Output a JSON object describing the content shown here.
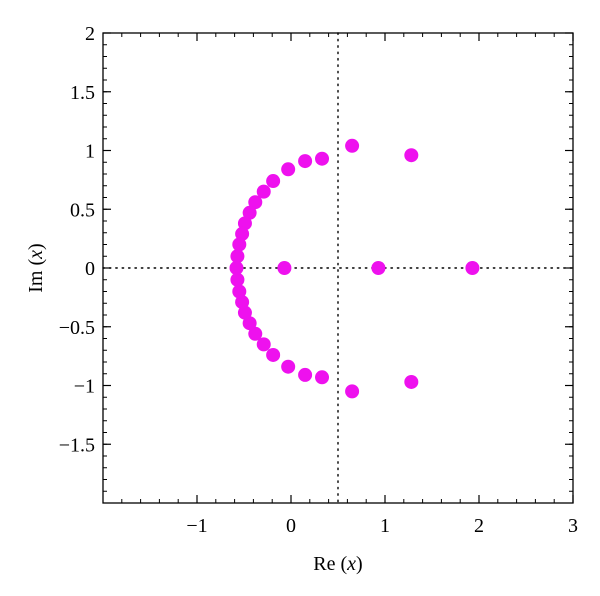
{
  "chart_data": {
    "type": "scatter",
    "title": "",
    "xlabel": {
      "prefix": "Re ",
      "open": "(",
      "var": "x",
      "close": ")"
    },
    "ylabel": {
      "prefix": "Im ",
      "open": "(",
      "var": "x",
      "close": ")"
    },
    "xlim": [
      -2,
      3
    ],
    "ylim": [
      -2,
      2
    ],
    "x_ticks": [
      {
        "value": -1,
        "label": "−1"
      },
      {
        "value": 0,
        "label": "0"
      },
      {
        "value": 1,
        "label": "1"
      },
      {
        "value": 2,
        "label": "2"
      },
      {
        "value": 3,
        "label": "3"
      }
    ],
    "y_ticks": [
      {
        "value": 2,
        "label": "2"
      },
      {
        "value": 1.5,
        "label": "1.5"
      },
      {
        "value": 1,
        "label": "1"
      },
      {
        "value": 0.5,
        "label": "0.5"
      },
      {
        "value": 0,
        "label": "0"
      },
      {
        "value": -0.5,
        "label": "−0.5"
      },
      {
        "value": -1,
        "label": "−1"
      },
      {
        "value": -1.5,
        "label": "−1.5"
      }
    ],
    "x_minor_step": 0.2,
    "y_minor_step": 0.1,
    "reference_lines": {
      "x": 0.5,
      "y": 0,
      "style": "dotted"
    },
    "grid": false,
    "marker_color": "#ee11ee",
    "points": [
      {
        "x": 0.65,
        "y": 1.04
      },
      {
        "x": 0.65,
        "y": -1.05
      },
      {
        "x": 1.28,
        "y": 0.96
      },
      {
        "x": 1.28,
        "y": -0.97
      },
      {
        "x": -0.07,
        "y": 0
      },
      {
        "x": 0.93,
        "y": 0
      },
      {
        "x": 1.93,
        "y": 0
      },
      {
        "x": 0.33,
        "y": 0.93
      },
      {
        "x": 0.33,
        "y": -0.93
      },
      {
        "x": 0.15,
        "y": 0.91
      },
      {
        "x": 0.15,
        "y": -0.91
      },
      {
        "x": -0.03,
        "y": 0.84
      },
      {
        "x": -0.03,
        "y": -0.84
      },
      {
        "x": -0.19,
        "y": 0.74
      },
      {
        "x": -0.19,
        "y": -0.74
      },
      {
        "x": -0.29,
        "y": 0.65
      },
      {
        "x": -0.29,
        "y": -0.65
      },
      {
        "x": -0.38,
        "y": 0.56
      },
      {
        "x": -0.38,
        "y": -0.56
      },
      {
        "x": -0.44,
        "y": 0.47
      },
      {
        "x": -0.44,
        "y": -0.47
      },
      {
        "x": -0.49,
        "y": 0.38
      },
      {
        "x": -0.49,
        "y": -0.38
      },
      {
        "x": -0.52,
        "y": 0.29
      },
      {
        "x": -0.52,
        "y": -0.29
      },
      {
        "x": -0.55,
        "y": 0.2
      },
      {
        "x": -0.55,
        "y": -0.2
      },
      {
        "x": -0.57,
        "y": 0.1
      },
      {
        "x": -0.57,
        "y": -0.1
      },
      {
        "x": -0.58,
        "y": 0
      }
    ]
  }
}
